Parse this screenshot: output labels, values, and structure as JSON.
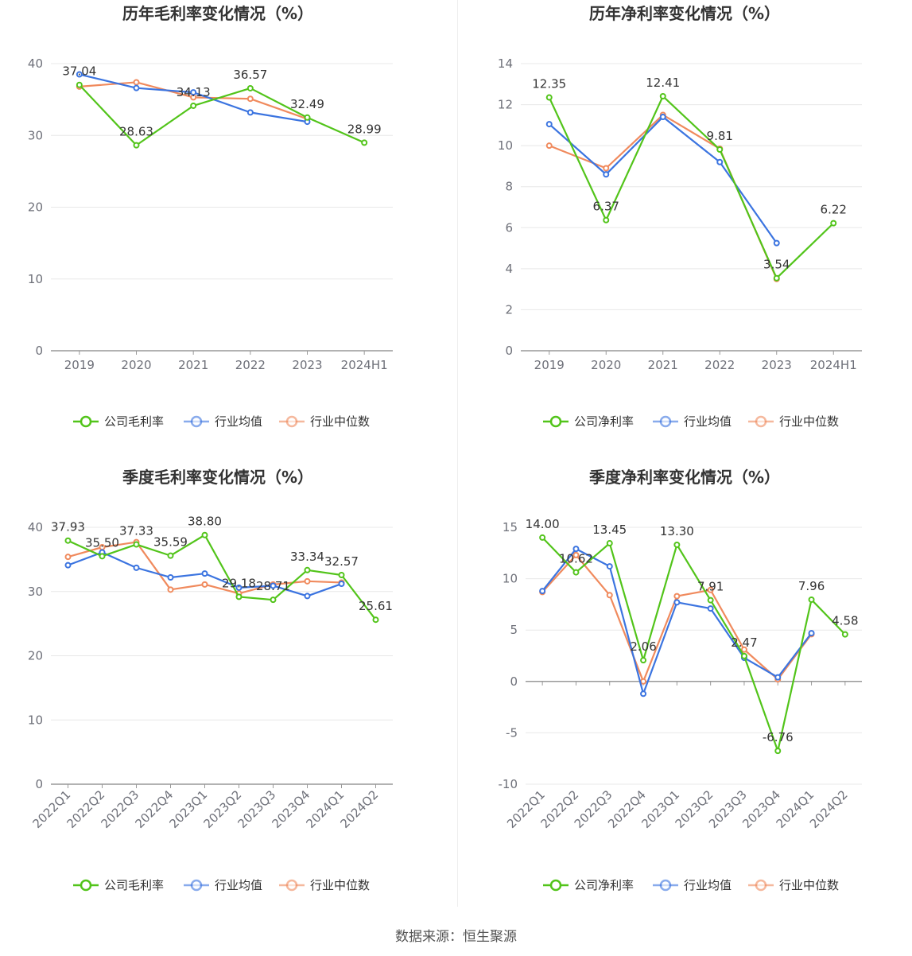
{
  "legend_labels": {
    "gross": [
      "公司毛利率",
      "行业均值",
      "行业中位数"
    ],
    "net": [
      "公司净利率",
      "行业均值",
      "行业中位数"
    ]
  },
  "colors": {
    "company": "#52c41a",
    "avg": "#3b74e0",
    "median": "#f08a5d",
    "grid": "#e8e8e8",
    "axis": "#999999"
  },
  "source": "数据来源：恒生聚源",
  "chart_data": [
    {
      "id": "annual-gross",
      "type": "line",
      "title": "历年毛利率变化情况（%）",
      "categories": [
        "2019",
        "2020",
        "2021",
        "2022",
        "2023",
        "2024H1"
      ],
      "ylim": [
        0,
        40
      ],
      "yticks": [
        0,
        10,
        20,
        30,
        40
      ],
      "grid": true,
      "legend": "bottom",
      "series": [
        {
          "name": "公司毛利率",
          "values": [
            37.04,
            28.63,
            34.13,
            36.57,
            32.49,
            28.99
          ],
          "labels": [
            "37.04",
            "28.63",
            "34.13",
            "36.57",
            "32.49",
            "28.99"
          ]
        },
        {
          "name": "行业均值",
          "values": [
            38.5,
            36.6,
            36.0,
            33.2,
            31.9,
            null
          ]
        },
        {
          "name": "行业中位数",
          "values": [
            36.8,
            37.4,
            35.3,
            35.1,
            32.3,
            null
          ]
        }
      ]
    },
    {
      "id": "annual-net",
      "type": "line",
      "title": "历年净利率变化情况（%）",
      "categories": [
        "2019",
        "2020",
        "2021",
        "2022",
        "2023",
        "2024H1"
      ],
      "ylim": [
        0,
        14
      ],
      "yticks": [
        0,
        2,
        4,
        6,
        8,
        10,
        12,
        14
      ],
      "grid": true,
      "legend": "bottom",
      "series": [
        {
          "name": "公司净利率",
          "values": [
            12.35,
            6.37,
            12.41,
            9.81,
            3.54,
            6.22
          ],
          "labels": [
            "12.35",
            "6.37",
            "12.41",
            "9.81",
            "3.54",
            "6.22"
          ]
        },
        {
          "name": "行业均值",
          "values": [
            11.05,
            8.6,
            11.4,
            9.2,
            5.25,
            null
          ]
        },
        {
          "name": "行业中位数",
          "values": [
            10.0,
            8.9,
            11.5,
            9.85,
            3.5,
            null
          ]
        }
      ]
    },
    {
      "id": "quarterly-gross",
      "type": "line",
      "title": "季度毛利率变化情况（%）",
      "categories": [
        "2022Q1",
        "2022Q2",
        "2022Q3",
        "2022Q4",
        "2023Q1",
        "2023Q2",
        "2023Q3",
        "2023Q4",
        "2024Q1",
        "2024Q2"
      ],
      "ylim": [
        0,
        40
      ],
      "yticks": [
        0,
        10,
        20,
        30,
        40
      ],
      "grid": true,
      "legend": "bottom",
      "series": [
        {
          "name": "公司毛利率",
          "values": [
            37.93,
            35.5,
            37.33,
            35.59,
            38.8,
            29.18,
            28.71,
            33.34,
            32.57,
            25.61
          ],
          "labels": [
            "37.93",
            "35.50",
            "37.33",
            "35.59",
            "38.80",
            "29.18",
            "28.71",
            "33.34",
            "32.57",
            "25.61"
          ]
        },
        {
          "name": "行业均值",
          "values": [
            34.1,
            36.1,
            33.7,
            32.2,
            32.8,
            30.6,
            30.9,
            29.3,
            31.2,
            null
          ]
        },
        {
          "name": "行业中位数",
          "values": [
            35.4,
            36.9,
            37.7,
            30.3,
            31.1,
            29.7,
            31.1,
            31.6,
            31.4,
            null
          ]
        }
      ]
    },
    {
      "id": "quarterly-net",
      "type": "line",
      "title": "季度净利率变化情况（%）",
      "categories": [
        "2022Q1",
        "2022Q2",
        "2022Q3",
        "2022Q4",
        "2023Q1",
        "2023Q2",
        "2023Q3",
        "2023Q4",
        "2024Q1",
        "2024Q2"
      ],
      "ylim": [
        -10,
        15
      ],
      "yticks": [
        -10,
        -5,
        0,
        5,
        10,
        15
      ],
      "grid": true,
      "legend": "bottom",
      "series": [
        {
          "name": "公司净利率",
          "values": [
            14.0,
            10.62,
            13.45,
            2.06,
            13.3,
            7.91,
            2.47,
            -6.76,
            7.96,
            4.58
          ],
          "labels": [
            "14.00",
            "10.62",
            "13.45",
            "2.06",
            "13.30",
            "7.91",
            "2.47",
            "-6.76",
            "7.96",
            "4.58"
          ]
        },
        {
          "name": "行业均值",
          "values": [
            8.8,
            12.9,
            11.2,
            -1.2,
            7.7,
            7.1,
            2.3,
            0.4,
            4.7,
            null
          ]
        },
        {
          "name": "行业中位数",
          "values": [
            8.7,
            12.3,
            8.4,
            0.0,
            8.3,
            8.9,
            3.1,
            0.2,
            4.6,
            null
          ]
        }
      ]
    }
  ]
}
